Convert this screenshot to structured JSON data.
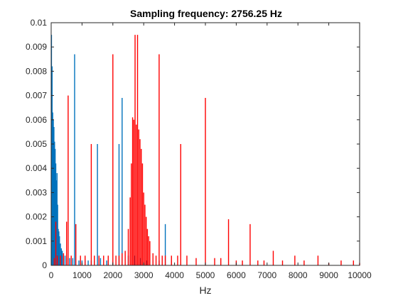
{
  "chart_data": {
    "type": "bar",
    "title": "Sampling frequency: 2756.25 Hz",
    "xlabel": "Hz",
    "ylabel": "",
    "xlim": [
      0,
      10000
    ],
    "ylim": [
      0,
      0.01
    ],
    "xticks": [
      "0",
      "1000",
      "2000",
      "3000",
      "4000",
      "5000",
      "6000",
      "7000",
      "8000",
      "9000",
      "10000"
    ],
    "yticks": [
      "0",
      "0.001",
      "0.002",
      "0.003",
      "0.004",
      "0.005",
      "0.006",
      "0.007",
      "0.008",
      "0.009",
      "0.01"
    ],
    "grid": false,
    "box": true,
    "series": [
      {
        "color": "#0072BD",
        "x": [
          10,
          30,
          50,
          70,
          90,
          110,
          130,
          150,
          170,
          190,
          210,
          230,
          250,
          270,
          300,
          330,
          360,
          400,
          450,
          500,
          600,
          700,
          760,
          900,
          1000,
          1100,
          1200,
          1300,
          1400,
          1500,
          1600,
          1800,
          2000,
          2200,
          2300,
          2500,
          2700,
          2900,
          3100,
          3300,
          3500,
          3700,
          3900
        ],
        "values": [
          0.0095,
          0.0082,
          0.0063,
          0.006,
          0.0057,
          0.0051,
          0.0048,
          0.0042,
          0.0035,
          0.0038,
          0.0025,
          0.0015,
          0.0014,
          0.0012,
          0.0009,
          0.0007,
          0.0006,
          0.0004,
          0.0004,
          0.0003,
          0.0003,
          0.0003,
          0.0087,
          0.0002,
          0.0002,
          0.0002,
          0.0002,
          0.0002,
          0.0002,
          0.005,
          0.0003,
          0.0002,
          0.0002,
          0.005,
          0.0069,
          0.0004,
          0.0004,
          0.0003,
          0.0002,
          0.0002,
          0.0002,
          0.0017,
          0.0002
        ]
      },
      {
        "color": "#FF0000",
        "x": [
          100,
          150,
          200,
          300,
          400,
          500,
          550,
          650,
          800,
          950,
          1100,
          1300,
          1400,
          1550,
          1700,
          1850,
          2000,
          2100,
          2200,
          2300,
          2400,
          2500,
          2560,
          2600,
          2640,
          2680,
          2720,
          2760,
          2800,
          2840,
          2880,
          2920,
          2960,
          3000,
          3040,
          3080,
          3120,
          3160,
          3200,
          3300,
          3400,
          3500,
          3600,
          3700,
          3900,
          4100,
          4200,
          4400,
          4700,
          5000,
          5300,
          5500,
          5750,
          6000,
          6200,
          6450,
          6700,
          6900,
          7200,
          7500,
          7900,
          8200,
          8650,
          9000,
          9400,
          9800,
          10000
        ],
        "values": [
          0.0003,
          0.0018,
          0.0004,
          0.0004,
          0.0005,
          0.0018,
          0.007,
          0.0004,
          0.0017,
          0.0004,
          0.0004,
          0.005,
          0.0004,
          0.0004,
          0.0004,
          0.0004,
          0.0087,
          0.0004,
          0.0004,
          0.0005,
          0.0006,
          0.0015,
          0.0028,
          0.0042,
          0.0061,
          0.006,
          0.0095,
          0.0058,
          0.0095,
          0.0056,
          0.0052,
          0.0048,
          0.0042,
          0.003,
          0.0025,
          0.002,
          0.0015,
          0.0012,
          0.001,
          0.0005,
          0.0004,
          0.0087,
          0.0004,
          0.0004,
          0.0004,
          0.0004,
          0.005,
          0.0004,
          0.0003,
          0.0069,
          0.0003,
          0.0003,
          0.0019,
          0.0002,
          0.0002,
          0.0017,
          0.0002,
          0.0002,
          0.0006,
          0.0002,
          0.0004,
          0.0002,
          0.0004,
          0.0001,
          0.0002,
          0.0002,
          0.0001
        ]
      }
    ]
  }
}
